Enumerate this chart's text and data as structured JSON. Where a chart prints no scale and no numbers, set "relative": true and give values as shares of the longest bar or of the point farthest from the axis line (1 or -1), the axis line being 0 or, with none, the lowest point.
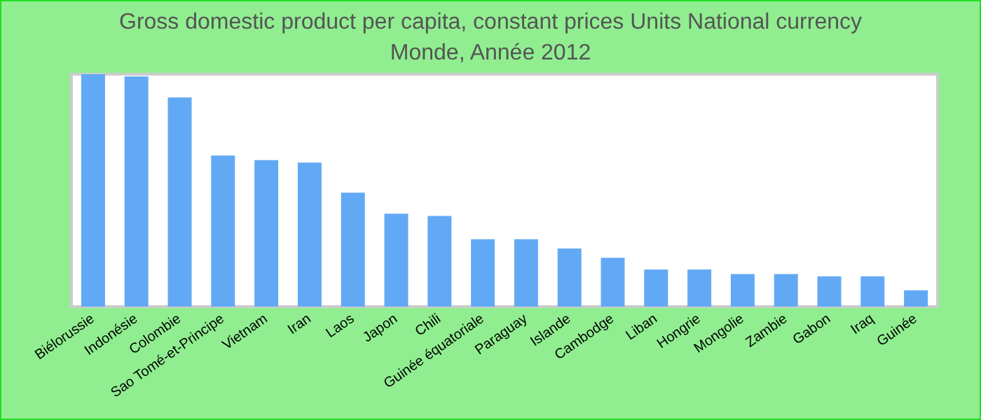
{
  "chart_data": {
    "type": "bar",
    "title": "Gross domestic product per capita, constant prices Units National currency",
    "subtitle": "Monde, Année 2012",
    "relative": true,
    "categories": [
      "Biélorussie",
      "Indonésie",
      "Colombie",
      "Sao Tomé-et-Principe",
      "Vietnam",
      "Iran",
      "Laos",
      "Japon",
      "Chili",
      "Guinée équatoriale",
      "Paraguay",
      "Islande",
      "Cambodge",
      "Liban",
      "Hongrie",
      "Mongolie",
      "Zambie",
      "Gabon",
      "Iraq",
      "Guinée"
    ],
    "values": [
      1,
      0.99,
      0.9,
      0.65,
      0.63,
      0.62,
      0.49,
      0.4,
      0.39,
      0.29,
      0.29,
      0.25,
      0.21,
      0.16,
      0.16,
      0.14,
      0.14,
      0.13,
      0.13,
      0.07
    ],
    "color": "#62a9f5"
  }
}
